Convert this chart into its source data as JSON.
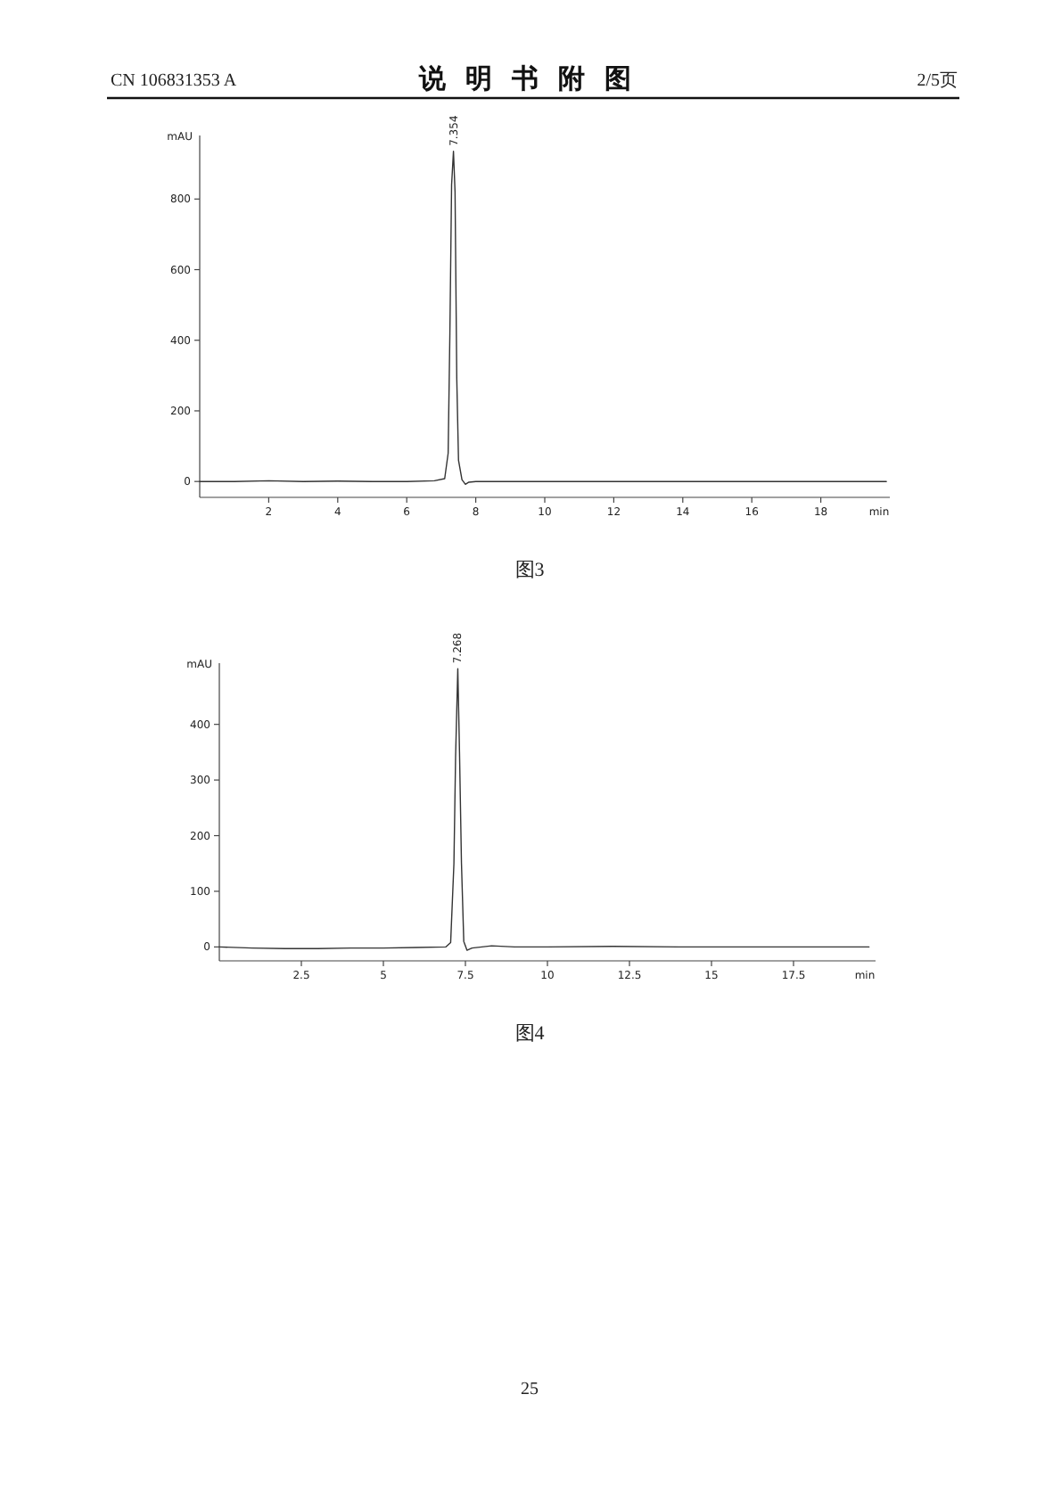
{
  "chart_data": [
    {
      "type": "line",
      "xlabel": "min",
      "ylabel": "mAU",
      "x": [
        0,
        1,
        2,
        3,
        4,
        5,
        6,
        6.8,
        7.1,
        7.2,
        7.25,
        7.3,
        7.354,
        7.4,
        7.45,
        7.5,
        7.6,
        7.7,
        7.8,
        8,
        10,
        12,
        14,
        16,
        18,
        19.9
      ],
      "series": [
        {
          "color": "#333333",
          "values": [
            0,
            0,
            2,
            0,
            1,
            0,
            0,
            2,
            8,
            80,
            420,
            840,
            935,
            820,
            290,
            60,
            5,
            -8,
            -2,
            0,
            0,
            0,
            0,
            0,
            0,
            0
          ]
        }
      ],
      "xlim": [
        0,
        20
      ],
      "ylim": [
        -45,
        980
      ],
      "xticks": [
        2,
        4,
        6,
        8,
        10,
        12,
        14,
        16,
        18
      ],
      "yticks": [
        0,
        200,
        400,
        600,
        800
      ],
      "annotations": [
        "CN 106831353 A",
        "说明书附图",
        "2/5页",
        "图3",
        {
          "text": "7.354",
          "x": 7.354,
          "y": 935
        }
      ]
    },
    {
      "type": "line",
      "xlabel": "min",
      "ylabel": "mAU",
      "x": [
        0,
        1,
        2,
        3,
        4,
        5,
        6,
        6.9,
        7.05,
        7.15,
        7.2,
        7.268,
        7.32,
        7.38,
        7.45,
        7.55,
        7.7,
        8.3,
        9,
        10,
        12,
        14,
        16,
        18,
        19.8
      ],
      "series": [
        {
          "color": "#333333",
          "values": [
            0,
            -2,
            -3,
            -3,
            -2,
            -2,
            -1,
            0,
            8,
            150,
            340,
            500,
            350,
            150,
            10,
            -6,
            -2,
            2,
            0,
            0,
            1,
            0,
            0,
            0,
            0
          ]
        }
      ],
      "xlim": [
        0,
        20
      ],
      "ylim": [
        -25,
        510
      ],
      "xticks": [
        2.5,
        5,
        7.5,
        10,
        12.5,
        15,
        17.5
      ],
      "yticks": [
        0,
        100,
        200,
        300,
        400
      ],
      "annotations": [
        "图4",
        "25",
        {
          "text": "7.268",
          "x": 7.268,
          "y": 500
        }
      ]
    }
  ]
}
